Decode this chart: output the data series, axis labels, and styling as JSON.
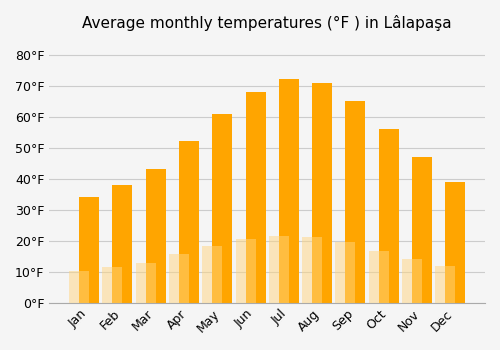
{
  "title": "Average monthly temperatures (°F ) in Lâlapaşa",
  "months": [
    "Jan",
    "Feb",
    "Mar",
    "Apr",
    "May",
    "Jun",
    "Jul",
    "Aug",
    "Sep",
    "Oct",
    "Nov",
    "Dec"
  ],
  "values": [
    34,
    38,
    43,
    52,
    61,
    68,
    72,
    71,
    65,
    56,
    47,
    39
  ],
  "bar_color_top": "#FFA500",
  "bar_color_bottom": "#FFD580",
  "background_color": "#f5f5f5",
  "grid_color": "#cccccc",
  "ylim": [
    0,
    85
  ],
  "yticks": [
    0,
    10,
    20,
    30,
    40,
    50,
    60,
    70,
    80
  ],
  "title_fontsize": 11,
  "tick_fontsize": 9
}
